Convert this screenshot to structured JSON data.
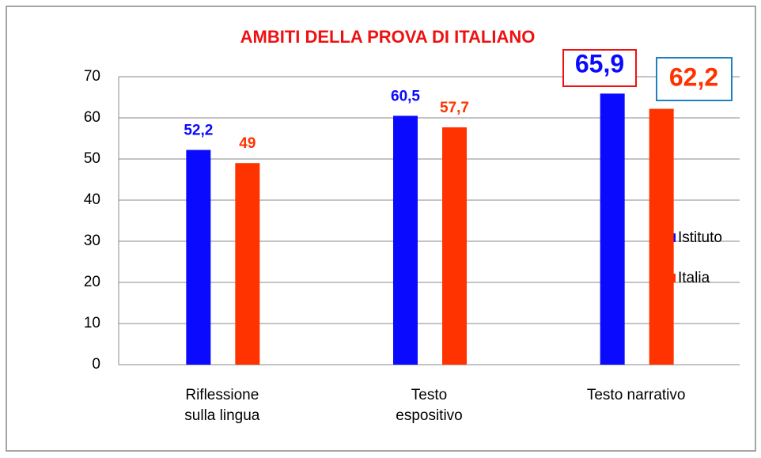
{
  "chart_data": {
    "type": "bar",
    "title": "AMBITI DELLA PROVA DI ITALIANO",
    "categories": [
      "Riflessione sulla lingua",
      "Testo espositivo",
      "Testo narrativo"
    ],
    "series": [
      {
        "name": "Istituto",
        "color": "#0a0aff",
        "values": [
          52.2,
          60.5,
          65.9
        ],
        "value_labels": [
          "52,2",
          "60,5",
          "65,9"
        ]
      },
      {
        "name": "Italia",
        "color": "#ff3300",
        "values": [
          49,
          57.7,
          62.2
        ],
        "value_labels": [
          "49",
          "57,7",
          "62,2"
        ]
      }
    ],
    "ylim": [
      0,
      70
    ],
    "yticks": [
      0,
      10,
      20,
      30,
      40,
      50,
      60,
      70
    ],
    "grid": true,
    "legend": "right"
  }
}
